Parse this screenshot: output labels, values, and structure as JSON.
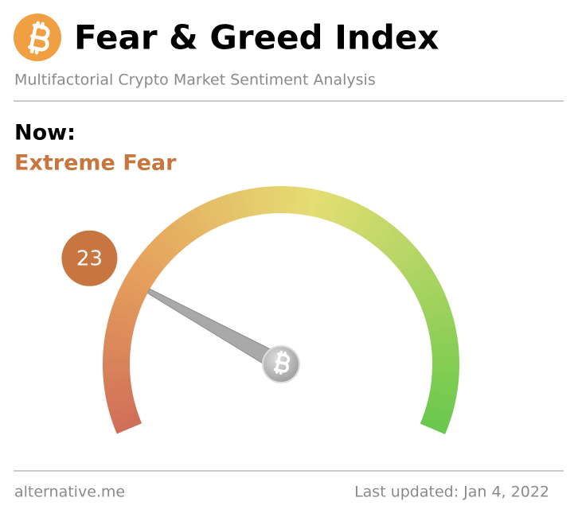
{
  "chart_data": {
    "type": "gauge",
    "title": "Fear & Greed Index",
    "subtitle": "Multifactorial Crypto Market Sentiment Analysis",
    "label": "Now:",
    "classification": "Extreme Fear",
    "value": 23,
    "ylim": [
      0,
      100
    ],
    "source": "alternative.me",
    "updated": "Last updated: Jan 4, 2022"
  }
}
